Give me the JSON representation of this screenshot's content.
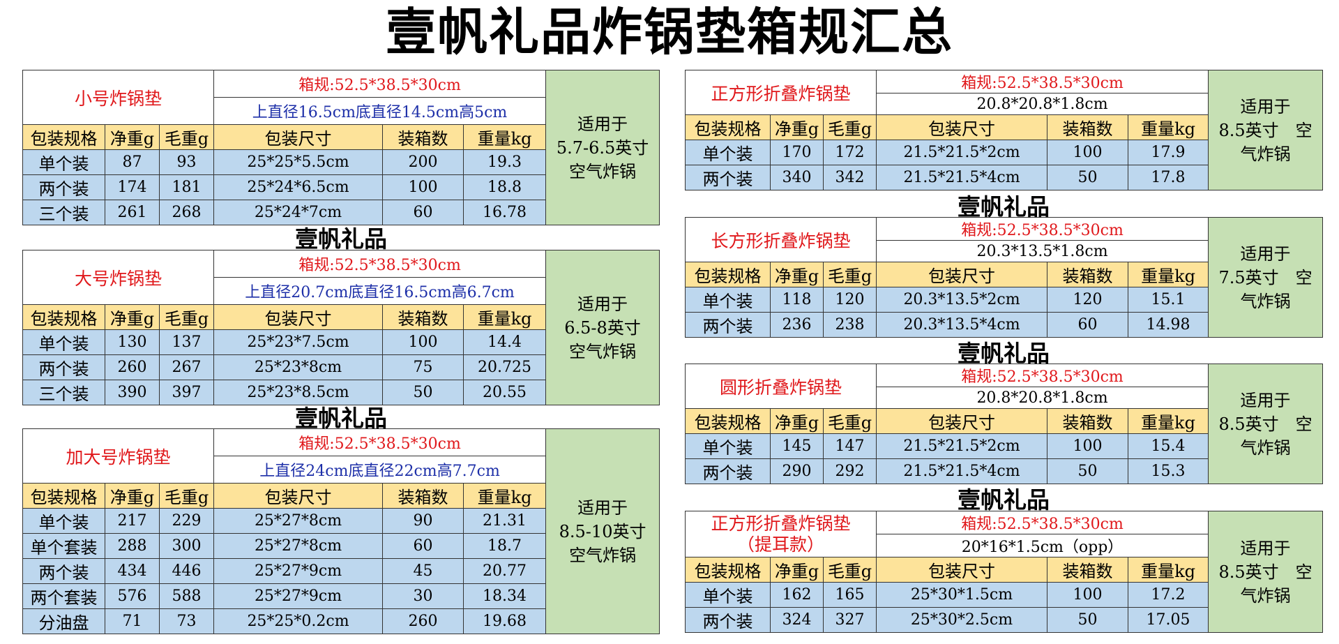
{
  "title": "壹帆礼品炸锅垫箱规汇总",
  "headers": [
    "包装规格",
    "净重g",
    "毛重g",
    "包装尺寸",
    "装箱数",
    "重量kg"
  ],
  "brand_label": "壹帆礼品",
  "left_blocks": [
    {
      "name": "小号炸锅垫",
      "box": "箱规:52.5*38.5*30cm",
      "dims": "上直径16.5cm底直径14.5cm高5cm",
      "fit": [
        "适用于",
        "5.7-6.5英寸",
        "空气炸锅"
      ],
      "rows": [
        [
          "单个装",
          "87",
          "93",
          "25*25*5.5cm",
          "200",
          "19.3"
        ],
        [
          "两个装",
          "174",
          "181",
          "25*24*6.5cm",
          "100",
          "18.8"
        ],
        [
          "三个装",
          "261",
          "268",
          "25*24*7cm",
          "60",
          "16.78"
        ]
      ]
    },
    {
      "name": "大号炸锅垫",
      "box": "箱规:52.5*38.5*30cm",
      "dims": "上直径20.7cm底直径16.5cm高6.7cm",
      "fit": [
        "适用于",
        "6.5-8英寸",
        "空气炸锅"
      ],
      "rows": [
        [
          "单个装",
          "130",
          "137",
          "25*23*7.5cm",
          "100",
          "14.4"
        ],
        [
          "两个装",
          "260",
          "267",
          "25*23*8cm",
          "75",
          "20.725"
        ],
        [
          "三个装",
          "390",
          "397",
          "25*23*8.5cm",
          "50",
          "20.55"
        ]
      ]
    },
    {
      "name": "加大号炸锅垫",
      "box": "箱规:52.5*38.5*30cm",
      "dims": "上直径24cm底直径22cm高7.7cm",
      "fit": [
        "适用于",
        "8.5-10英寸",
        "空气炸锅"
      ],
      "rows": [
        [
          "单个装",
          "217",
          "229",
          "25*27*8cm",
          "90",
          "21.31"
        ],
        [
          "单个套装",
          "288",
          "300",
          "25*27*8cm",
          "60",
          "18.7"
        ],
        [
          "两个装",
          "434",
          "446",
          "25*27*9cm",
          "45",
          "20.77"
        ],
        [
          "两个套装",
          "576",
          "588",
          "25*27*9cm",
          "30",
          "18.34"
        ],
        [
          "分油盘",
          "71",
          "73",
          "25*25*0.2cm",
          "260",
          "19.68"
        ]
      ]
    }
  ],
  "right_blocks": [
    {
      "name": "正方形折叠炸锅垫",
      "box": "箱规:52.5*38.5*30cm",
      "dims": "20.8*20.8*1.8cm",
      "fit": [
        "适用于",
        "8.5英寸　空",
        "气炸锅"
      ],
      "rows": [
        [
          "单个装",
          "170",
          "172",
          "21.5*21.5*2cm",
          "100",
          "17.9"
        ],
        [
          "两个装",
          "340",
          "342",
          "21.5*21.5*4cm",
          "50",
          "17.8"
        ]
      ]
    },
    {
      "name": "长方形折叠炸锅垫",
      "box": "箱规:52.5*38.5*30cm",
      "dims": "20.3*13.5*1.8cm",
      "fit": [
        "适用于",
        "7.5英寸　空",
        "气炸锅"
      ],
      "rows": [
        [
          "单个装",
          "118",
          "120",
          "20.3*13.5*2cm",
          "120",
          "15.1"
        ],
        [
          "两个装",
          "236",
          "238",
          "20.3*13.5*4cm",
          "60",
          "14.98"
        ]
      ]
    },
    {
      "name": "圆形折叠炸锅垫",
      "box": "箱规:52.5*38.5*30cm",
      "dims": "20.8*20.8*1.8cm",
      "fit": [
        "适用于",
        "8.5英寸　空",
        "气炸锅"
      ],
      "rows": [
        [
          "单个装",
          "145",
          "147",
          "21.5*21.5*2cm",
          "100",
          "15.4"
        ],
        [
          "两个装",
          "290",
          "292",
          "21.5*21.5*4cm",
          "50",
          "15.3"
        ]
      ]
    },
    {
      "name": "正方形折叠炸锅垫",
      "name2": "（提耳款）",
      "box": "箱规:52.5*38.5*30cm",
      "dims": "20*16*1.5cm（opp）",
      "fit": [
        "适用于",
        "8.5英寸　空",
        "气炸锅"
      ],
      "rows": [
        [
          "单个装",
          "162",
          "165",
          "25*30*1.5cm",
          "100",
          "17.2"
        ],
        [
          "两个装",
          "324",
          "327",
          "25*30*2.5cm",
          "50",
          "17.05"
        ]
      ]
    }
  ]
}
